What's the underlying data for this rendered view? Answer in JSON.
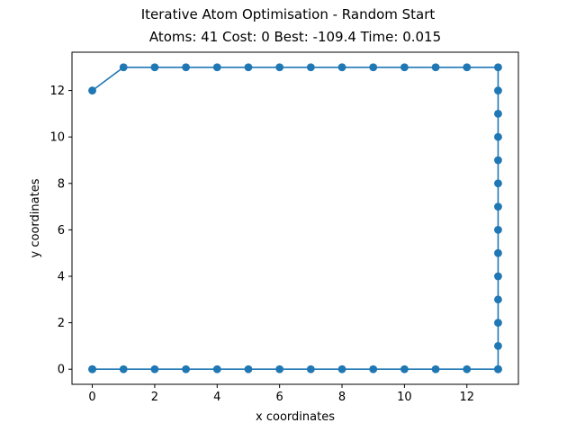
{
  "figure": {
    "suptitle": "Iterative Atom Optimisation - Random Start",
    "title": "Atoms: 41 Cost: 0 Best: -109.4 Time: 0.015"
  },
  "chart_data": {
    "type": "line",
    "markers": true,
    "xlabel": "x coordinates",
    "ylabel": "y coordinates",
    "xlim": [
      -0.65,
      13.65
    ],
    "ylim": [
      -0.65,
      13.65
    ],
    "xticks": [
      0,
      2,
      4,
      6,
      8,
      10,
      12
    ],
    "yticks": [
      0,
      2,
      4,
      6,
      8,
      10,
      12
    ],
    "grid": false,
    "color": "#1f77b4",
    "series": [
      {
        "x": [
          0,
          1,
          2,
          3,
          4,
          5,
          6,
          7,
          8,
          9,
          10,
          11,
          12,
          13,
          13,
          13,
          13,
          13,
          13,
          13,
          13,
          13,
          13,
          13,
          13,
          13,
          13,
          13,
          12,
          11,
          10,
          9,
          8,
          7,
          6,
          5,
          4,
          3,
          2,
          1,
          0,
          0
        ],
        "y": [
          12,
          13,
          13,
          13,
          13,
          13,
          13,
          13,
          13,
          13,
          13,
          13,
          13,
          13,
          12,
          11,
          10,
          9,
          8,
          7,
          6,
          5,
          4,
          3,
          2,
          1,
          0,
          0,
          0,
          0,
          0,
          0,
          0,
          0,
          0,
          0,
          0,
          0,
          0,
          0,
          0,
          0
        ]
      }
    ]
  }
}
